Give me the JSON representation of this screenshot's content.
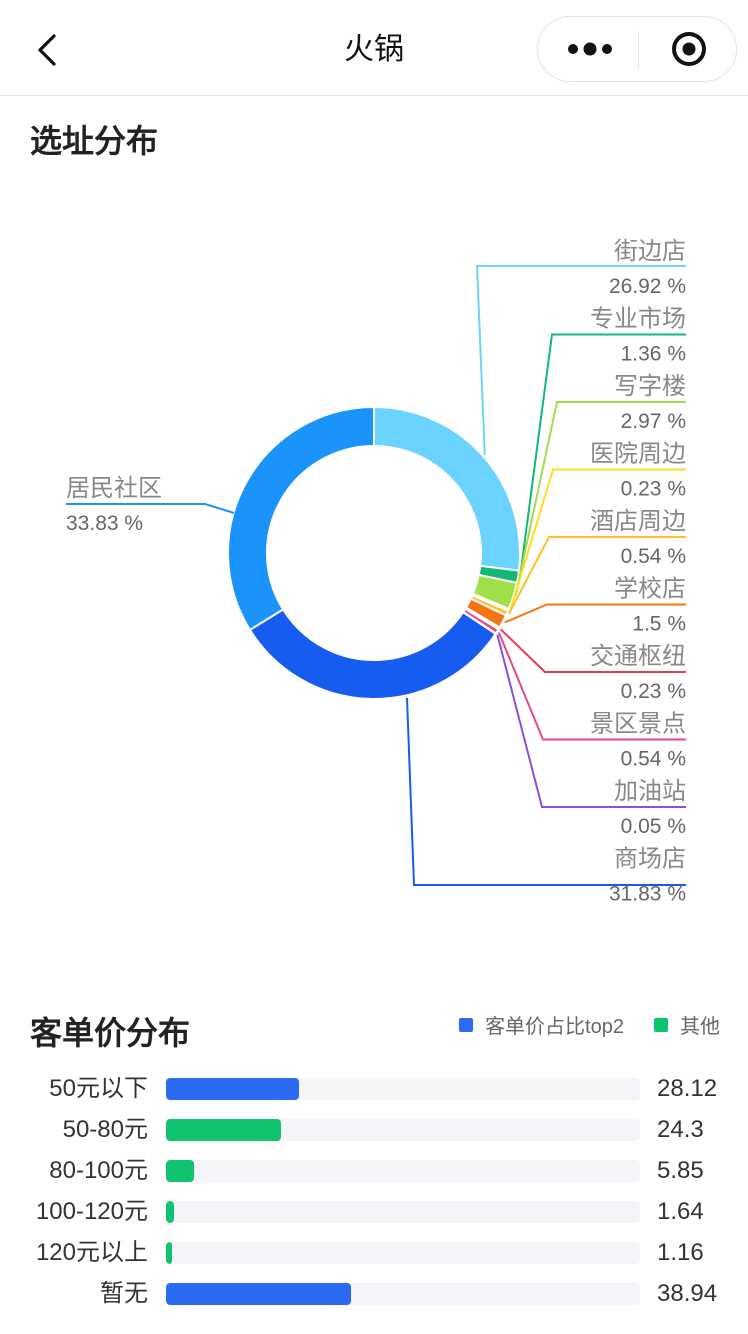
{
  "nav": {
    "title": "火锅",
    "back_icon": "chevron-left-icon",
    "more_icon": "more-dots-icon",
    "close_icon": "target-close-icon"
  },
  "section1": {
    "title": "选址分布"
  },
  "section2": {
    "title": "客单价分布"
  },
  "chart_data": [
    {
      "type": "pie",
      "title": "选址分布",
      "donut": true,
      "slices": [
        {
          "label": "街边店",
          "value": 26.92,
          "value_text": "26.92 %",
          "color": "#6ad3ff"
        },
        {
          "label": "专业市场",
          "value": 1.36,
          "value_text": "1.36 %",
          "color": "#12b877"
        },
        {
          "label": "写字楼",
          "value": 2.97,
          "value_text": "2.97 %",
          "color": "#9fe04a"
        },
        {
          "label": "医院周边",
          "value": 0.23,
          "value_text": "0.23 %",
          "color": "#ffdd1c"
        },
        {
          "label": "酒店周边",
          "value": 0.54,
          "value_text": "0.54 %",
          "color": "#ffbf1f"
        },
        {
          "label": "学校店",
          "value": 1.5,
          "value_text": "1.5 %",
          "color": "#f57514"
        },
        {
          "label": "交通枢纽",
          "value": 0.23,
          "value_text": "0.23 %",
          "color": "#e83a52"
        },
        {
          "label": "景区景点",
          "value": 0.54,
          "value_text": "0.54 %",
          "color": "#e64590"
        },
        {
          "label": "加油站",
          "value": 0.05,
          "value_text": "0.05 %",
          "color": "#8a4fe0"
        },
        {
          "label": "商场店",
          "value": 31.83,
          "value_text": "31.83 %",
          "color": "#175cf0"
        },
        {
          "label": "居民社区",
          "value": 33.83,
          "value_text": "33.83 %",
          "color": "#1a93fb"
        }
      ]
    },
    {
      "type": "bar",
      "orientation": "horizontal",
      "title": "客单价分布",
      "xlim": [
        0,
        100
      ],
      "legend": [
        {
          "name": "客单价占比top2",
          "color": "#2b6af3"
        },
        {
          "name": "其他",
          "color": "#10c46f"
        }
      ],
      "categories": [
        "50元以下",
        "50-80元",
        "80-100元",
        "100-120元",
        "120元以上",
        "暂无"
      ],
      "values": [
        28.12,
        24.3,
        5.85,
        1.64,
        1.16,
        38.94
      ],
      "value_texts": [
        "28.12",
        "24.3",
        "5.85",
        "1.64",
        "1.16",
        "38.94"
      ],
      "colors": [
        "#2b6af3",
        "#10c46f",
        "#10c46f",
        "#10c46f",
        "#10c46f",
        "#2b6af3"
      ]
    }
  ]
}
